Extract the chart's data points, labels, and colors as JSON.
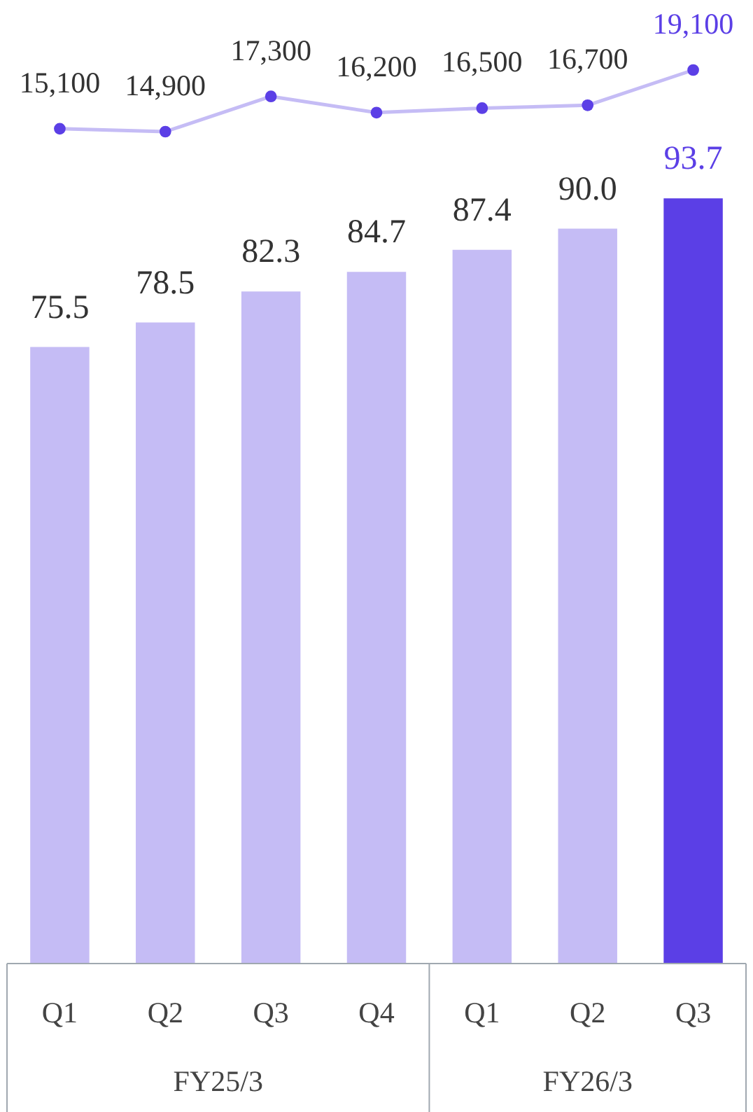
{
  "chart_data": {
    "type": "bar",
    "categories": [
      "Q1",
      "Q2",
      "Q3",
      "Q4",
      "Q1",
      "Q2",
      "Q3"
    ],
    "annotations": [
      "FY25/3",
      "FY26/3"
    ],
    "ylim": [
      0,
      118
    ],
    "tick_labels": "x",
    "series": [
      {
        "color": "#c5bcf5",
        "colors": [
          "#c5bcf5",
          "#c5bcf5",
          "#c5bcf5",
          "#c5bcf5",
          "#c5bcf5",
          "#c5bcf5",
          "#5b3fe6"
        ],
        "values": [
          75.5,
          78.5,
          82.3,
          84.7,
          87.4,
          90.0,
          93.7
        ],
        "value_labels": [
          "75.5",
          "78.5",
          "82.3",
          "84.7",
          "87.4",
          "90.0",
          "93.7"
        ]
      },
      {
        "type": "line",
        "axis": "y2",
        "color": "#c5bcf5",
        "marker": "circle",
        "colors": [
          "#5b3fe6",
          "#5b3fe6",
          "#5b3fe6",
          "#5b3fe6",
          "#5b3fe6",
          "#5b3fe6",
          "#5b3fe6"
        ],
        "values": [
          15100,
          14900,
          17300,
          16200,
          16500,
          16700,
          19100
        ],
        "value_labels": [
          "15,100",
          "14,900",
          "17,300",
          "16,200",
          "16,500",
          "16,700",
          "19,100"
        ]
      }
    ]
  }
}
